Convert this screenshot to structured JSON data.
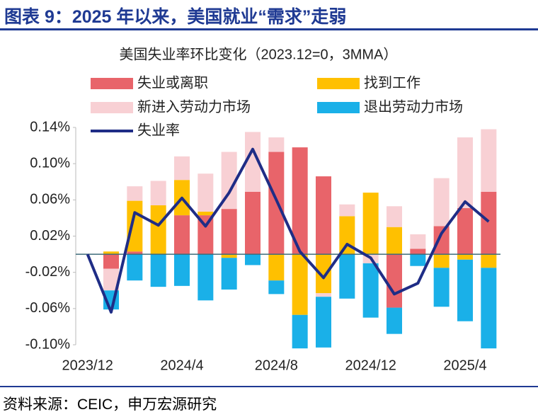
{
  "title": "图表 9：2025 年以来，美国就业“需求”走弱",
  "source": "资料来源：CEIC，申万宏源研究",
  "chart_data": {
    "type": "bar",
    "subtitle": "美国失业率环比变化（2023.12=0，3MMA）",
    "categories": [
      "2023/12",
      null,
      null,
      null,
      "2024/4",
      null,
      null,
      null,
      "2024/8",
      null,
      null,
      null,
      "2024/12",
      null,
      null,
      null,
      "2025/4",
      null
    ],
    "series": [
      {
        "name": "失业或离职",
        "color": "#e8646a",
        "values": [
          0,
          -0.016,
          0.003,
          0,
          0.043,
          0.043,
          0.05,
          0.069,
          0.113,
          0.118,
          0.086,
          0,
          0,
          -0.059,
          0.006,
          0.031,
          0.051,
          0.069
        ]
      },
      {
        "name": "找到工作",
        "color": "#ffc000",
        "values": [
          0,
          0.003,
          0.056,
          0.054,
          0.039,
          0.004,
          -0.004,
          0,
          -0.029,
          -0.067,
          -0.043,
          0.042,
          0.068,
          0.03,
          0,
          -0.015,
          -0.006,
          -0.015
        ]
      },
      {
        "name": "新进入劳动力市场",
        "color": "#f8d0d4",
        "values": [
          0,
          -0.024,
          0.016,
          0.027,
          0.026,
          0.042,
          0.063,
          0.066,
          0.016,
          0,
          -0.004,
          0.013,
          -0.01,
          0.023,
          0.016,
          0.053,
          0.078,
          0.069
        ]
      },
      {
        "name": "退出劳动力市场",
        "color": "#1ab0e8",
        "values": [
          0,
          -0.021,
          -0.029,
          -0.036,
          -0.035,
          -0.051,
          -0.035,
          -0.012,
          -0.015,
          -0.037,
          -0.056,
          -0.049,
          -0.06,
          -0.029,
          -0.013,
          -0.043,
          -0.068,
          -0.089
        ]
      },
      {
        "name": "失业率",
        "type": "line",
        "color": "#1f2d86",
        "values": [
          0,
          -0.064,
          0.046,
          0.032,
          0.062,
          0.031,
          0.068,
          0.116,
          0.06,
          0.003,
          -0.026,
          0.011,
          -0.004,
          -0.044,
          -0.032,
          0.023,
          0.058,
          0.036
        ]
      }
    ],
    "ylim": [
      -0.1,
      0.14
    ],
    "yticks": [
      {
        "value": -0.1,
        "label": "-0.10%"
      },
      {
        "value": -0.06,
        "label": "-0.06%"
      },
      {
        "value": -0.02,
        "label": "-0.02%"
      },
      {
        "value": 0.02,
        "label": "0.02%"
      },
      {
        "value": 0.06,
        "label": "0.06%"
      },
      {
        "value": 0.1,
        "label": "0.10%"
      },
      {
        "value": 0.14,
        "label": "0.14%"
      }
    ],
    "grid": false
  }
}
